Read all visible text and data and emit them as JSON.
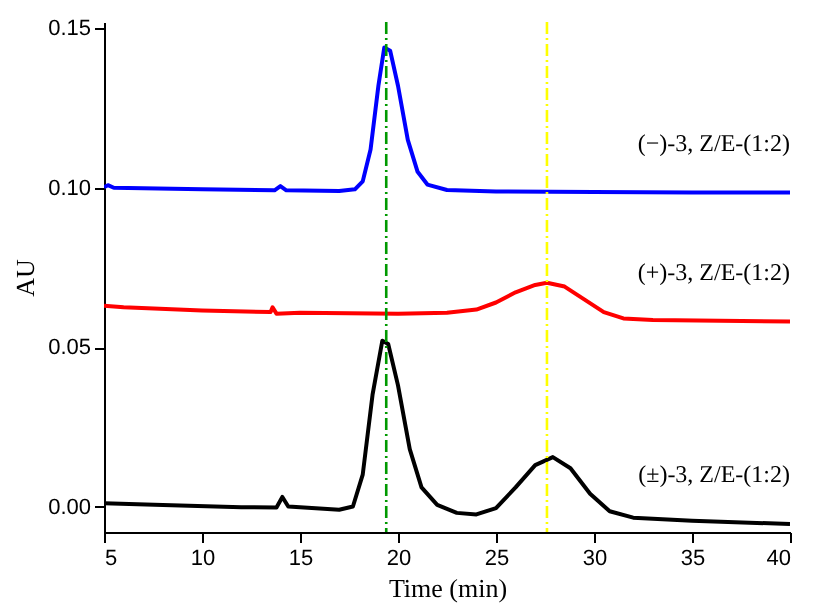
{
  "chart_data": {
    "type": "line",
    "xlabel": "Time (min)",
    "ylabel": "AU",
    "xlim": [
      5,
      40
    ],
    "xticks": [
      5,
      10,
      15,
      20,
      25,
      30,
      35,
      40
    ],
    "ylim": [
      -0.008,
      0.152
    ],
    "yticks": [
      {
        "value": 0,
        "label": "0.00"
      },
      {
        "value": 0.05,
        "label": "0.05"
      },
      {
        "value": 0.1,
        "label": "0.10"
      },
      {
        "value": 0.15,
        "label": "0.15"
      }
    ],
    "grid": false,
    "line_style": "solid",
    "marker": "none",
    "series": [
      {
        "name": "(−)-3, Z/E-(1:2)",
        "color": "#0000ff",
        "x": [
          5,
          5.2,
          5.5,
          10,
          13.7,
          14,
          14.3,
          17,
          17.8,
          18.2,
          18.6,
          19,
          19.3,
          19.6,
          20,
          20.5,
          21,
          21.5,
          22.5,
          25,
          30,
          35,
          40
        ],
        "values": [
          0.1002,
          0.1008,
          0.1,
          0.0995,
          0.0992,
          0.1005,
          0.0992,
          0.099,
          0.0995,
          0.102,
          0.112,
          0.132,
          0.144,
          0.143,
          0.132,
          0.115,
          0.105,
          0.101,
          0.0993,
          0.0988,
          0.0987,
          0.0985,
          0.0985
        ]
      },
      {
        "name": "(+)-3, Z/E-(1:2)",
        "color": "#ff0000",
        "x": [
          5,
          6,
          10,
          13.5,
          13.6,
          13.8,
          15,
          20,
          22.5,
          24,
          25,
          26,
          27,
          27.6,
          28.5,
          29.5,
          30.5,
          31.5,
          33,
          40
        ],
        "values": [
          0.063,
          0.0625,
          0.0615,
          0.061,
          0.0625,
          0.0605,
          0.0608,
          0.0605,
          0.0608,
          0.0618,
          0.064,
          0.0672,
          0.0695,
          0.0702,
          0.069,
          0.065,
          0.061,
          0.059,
          0.0585,
          0.058
        ]
      },
      {
        "name": "(±)-3, Z/E-(1:2)",
        "color": "#000000",
        "x": [
          5,
          8,
          12,
          13.8,
          14.1,
          14.4,
          17,
          17.7,
          18.2,
          18.7,
          19.2,
          19.5,
          20,
          20.6,
          21.2,
          22,
          23,
          24,
          25,
          26,
          27,
          27.9,
          28.8,
          29.8,
          30.8,
          32,
          35,
          40
        ],
        "values": [
          0.001,
          0.0005,
          -0.0002,
          -0.0003,
          0.003,
          0,
          -0.001,
          0,
          0.01,
          0.035,
          0.052,
          0.051,
          0.038,
          0.018,
          0.006,
          0.0005,
          -0.002,
          -0.0025,
          -0.0005,
          0.006,
          0.013,
          0.0155,
          0.012,
          0.004,
          -0.0015,
          -0.0035,
          -0.0045,
          -0.0055
        ]
      }
    ],
    "ref_lines": [
      {
        "axis": "x",
        "value": 19.4,
        "color": "#009900",
        "line_style": "dashed"
      },
      {
        "axis": "x",
        "value": 27.6,
        "color": "#ffff00",
        "line_style": "dashed"
      }
    ]
  }
}
